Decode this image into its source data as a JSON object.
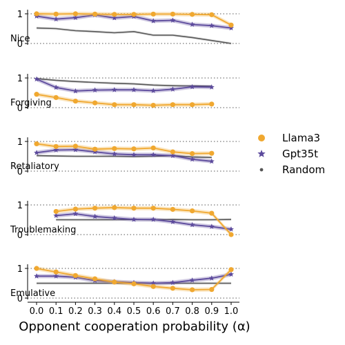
{
  "chart_data": {
    "type": "line",
    "xlabel": "Opponent cooperation probability (α)",
    "x_ticks": [
      0.0,
      0.1,
      0.2,
      0.3,
      0.4,
      0.5,
      0.6,
      0.7,
      0.8,
      0.9,
      1.0
    ],
    "x_tick_labels": [
      "0.0",
      "0.1",
      "0.2",
      "0.3",
      "0.4",
      "0.5",
      "0.6",
      "0.7",
      "0.8",
      "0.9",
      "1.0"
    ],
    "y_ticks": [
      0,
      1
    ],
    "y_tick_labels": [
      "0",
      "1"
    ],
    "ylim": [
      0,
      1
    ],
    "reference_lines": [
      0,
      1
    ],
    "legend": {
      "placement": "center-right",
      "entries": [
        {
          "label": "Llama3",
          "color": "#f0a830",
          "marker": "circle"
        },
        {
          "label": "Gpt35t",
          "color": "#5c4a9c",
          "marker": "star"
        },
        {
          "label": "Random",
          "color": "#555555",
          "marker": "dot"
        }
      ]
    },
    "panels": [
      {
        "title": "Nice",
        "series": [
          {
            "name": "Llama3",
            "x": [
              0.0,
              0.1,
              0.2,
              0.3,
              0.4,
              0.5,
              0.6,
              0.7,
              0.8,
              0.9,
              1.0
            ],
            "y": [
              1.0,
              0.99,
              1.0,
              0.99,
              0.98,
              0.98,
              0.99,
              0.99,
              0.98,
              0.97,
              0.62
            ]
          },
          {
            "name": "Gpt35t",
            "x": [
              0.0,
              0.1,
              0.2,
              0.3,
              0.4,
              0.5,
              0.6,
              0.7,
              0.8,
              0.9,
              1.0
            ],
            "y": [
              0.92,
              0.82,
              0.87,
              0.96,
              0.86,
              0.91,
              0.76,
              0.78,
              0.64,
              0.6,
              0.52
            ]
          },
          {
            "name": "Random",
            "x": [
              0.0,
              0.1,
              0.2,
              0.3,
              0.4,
              0.5,
              0.6,
              0.7,
              0.8,
              0.9,
              1.0
            ],
            "y": [
              0.52,
              0.5,
              0.43,
              0.4,
              0.36,
              0.4,
              0.28,
              0.28,
              0.2,
              0.1,
              0.0
            ]
          }
        ]
      },
      {
        "title": "Forgiving",
        "series": [
          {
            "name": "Llama3",
            "x": [
              0.0,
              0.1,
              0.2,
              0.3,
              0.4,
              0.5,
              0.6,
              0.7,
              0.8,
              0.9
            ],
            "y": [
              0.45,
              0.34,
              0.22,
              0.16,
              0.1,
              0.1,
              0.08,
              0.1,
              0.1,
              0.12
            ]
          },
          {
            "name": "Gpt35t",
            "x": [
              0.0,
              0.1,
              0.2,
              0.3,
              0.4,
              0.5,
              0.6,
              0.7,
              0.8,
              0.9
            ],
            "y": [
              0.96,
              0.68,
              0.56,
              0.59,
              0.6,
              0.6,
              0.57,
              0.62,
              0.7,
              0.69
            ]
          },
          {
            "name": "Random",
            "x": [
              0.0,
              0.1,
              0.2,
              0.3,
              0.4,
              0.5,
              0.6,
              0.7,
              0.8,
              0.9
            ],
            "y": [
              0.98,
              0.92,
              0.88,
              0.85,
              0.82,
              0.8,
              0.76,
              0.74,
              0.73,
              0.72
            ]
          }
        ]
      },
      {
        "title": "Retaliatory",
        "series": [
          {
            "name": "Llama3",
            "x": [
              0.0,
              0.1,
              0.2,
              0.3,
              0.4,
              0.5,
              0.6,
              0.7,
              0.8,
              0.9
            ],
            "y": [
              0.92,
              0.83,
              0.84,
              0.74,
              0.76,
              0.75,
              0.78,
              0.65,
              0.59,
              0.6
            ]
          },
          {
            "name": "Gpt35t",
            "x": [
              0.0,
              0.1,
              0.2,
              0.3,
              0.4,
              0.5,
              0.6,
              0.7,
              0.8,
              0.9
            ],
            "y": [
              0.62,
              0.71,
              0.72,
              0.65,
              0.58,
              0.55,
              0.55,
              0.52,
              0.4,
              0.33
            ]
          },
          {
            "name": "Random",
            "x": [
              0.0,
              0.1,
              0.2,
              0.3,
              0.4,
              0.5,
              0.6,
              0.7,
              0.8,
              0.9
            ],
            "y": [
              0.52,
              0.51,
              0.5,
              0.5,
              0.5,
              0.49,
              0.5,
              0.52,
              0.48,
              0.46
            ]
          }
        ]
      },
      {
        "title": "Troublemaking",
        "series": [
          {
            "name": "Llama3",
            "x": [
              0.1,
              0.2,
              0.3,
              0.4,
              0.5,
              0.6,
              0.7,
              0.8,
              0.9,
              1.0
            ],
            "y": [
              0.78,
              0.86,
              0.89,
              0.91,
              0.89,
              0.89,
              0.85,
              0.8,
              0.72,
              0.0
            ]
          },
          {
            "name": "Gpt35t",
            "x": [
              0.1,
              0.2,
              0.3,
              0.4,
              0.5,
              0.6,
              0.7,
              0.8,
              0.9,
              1.0
            ],
            "y": [
              0.64,
              0.7,
              0.61,
              0.56,
              0.51,
              0.51,
              0.43,
              0.33,
              0.27,
              0.18
            ]
          },
          {
            "name": "Random",
            "x": [
              0.1,
              0.2,
              0.3,
              0.4,
              0.5,
              0.6,
              0.7,
              0.8,
              0.9,
              1.0
            ],
            "y": [
              0.5,
              0.5,
              0.5,
              0.5,
              0.51,
              0.5,
              0.51,
              0.5,
              0.5,
              0.51
            ]
          }
        ]
      },
      {
        "title": "Emulative",
        "series": [
          {
            "name": "Llama3",
            "x": [
              0.0,
              0.1,
              0.2,
              0.3,
              0.4,
              0.5,
              0.6,
              0.7,
              0.8,
              0.9,
              1.0
            ],
            "y": [
              1.0,
              0.88,
              0.76,
              0.65,
              0.54,
              0.48,
              0.39,
              0.33,
              0.28,
              0.29,
              0.96
            ]
          },
          {
            "name": "Gpt35t",
            "x": [
              0.0,
              0.1,
              0.2,
              0.3,
              0.4,
              0.5,
              0.6,
              0.7,
              0.8,
              0.9,
              1.0
            ],
            "y": [
              0.74,
              0.74,
              0.7,
              0.59,
              0.55,
              0.52,
              0.5,
              0.52,
              0.6,
              0.67,
              0.8
            ]
          },
          {
            "name": "Random",
            "x": [
              0.0,
              0.1,
              0.2,
              0.3,
              0.4,
              0.5,
              0.6,
              0.7,
              0.8,
              0.9,
              1.0
            ],
            "y": [
              0.5,
              0.5,
              0.5,
              0.5,
              0.5,
              0.5,
              0.5,
              0.5,
              0.5,
              0.5,
              0.5
            ]
          }
        ]
      }
    ]
  }
}
